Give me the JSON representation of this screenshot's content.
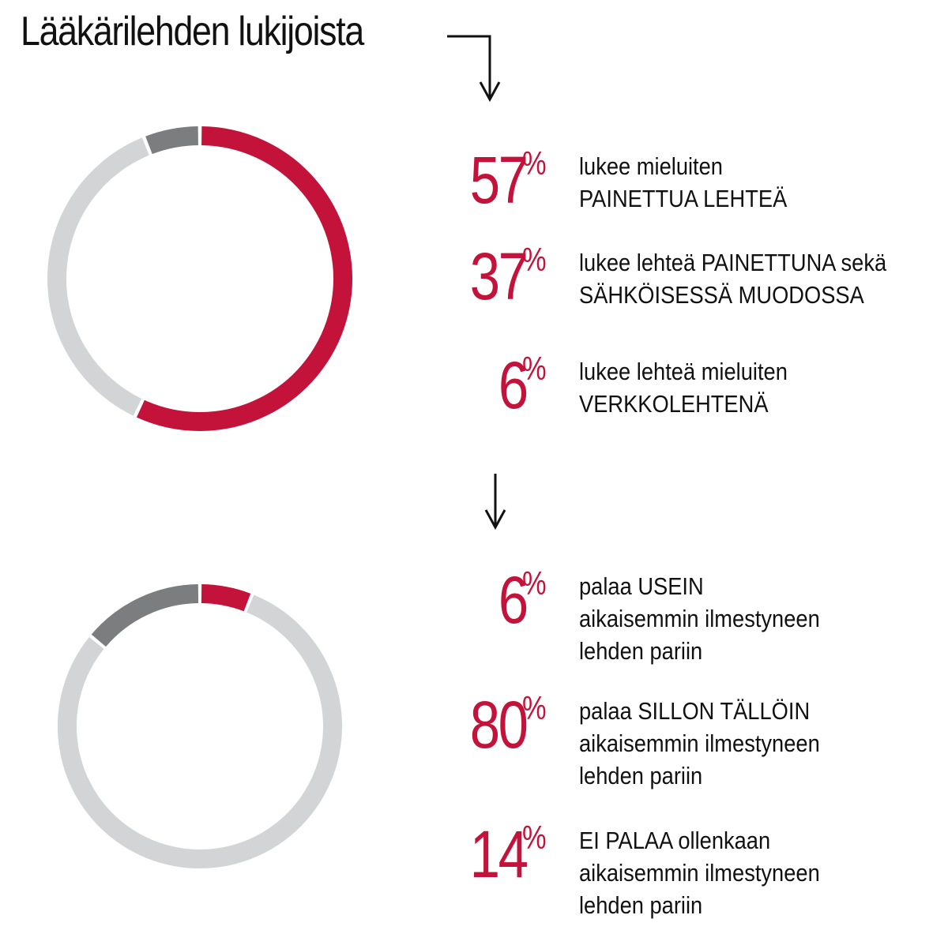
{
  "title": "Lääkärilehden lukijoista",
  "colors": {
    "accent": "#c4133a",
    "dark_gray": "#7c7d7f",
    "light_gray": "#d3d4d6",
    "text": "#111111"
  },
  "chart_data": [
    {
      "type": "pie",
      "style": "donut",
      "slices": [
        {
          "value": 57,
          "label": "57%",
          "color": "#c4133a",
          "lines": [
            "lukee mieluiten",
            "PAINETTUA LEHTEÄ"
          ]
        },
        {
          "value": 37,
          "label": "37%",
          "color": "#d3d4d6",
          "lines": [
            "lukee lehteä PAINETTUNA sekä",
            "SÄHKÖISESSÄ MUODOSSA"
          ]
        },
        {
          "value": 6,
          "label": "6%",
          "color": "#7c7d7f",
          "lines": [
            "lukee lehteä mieluiten",
            "VERKKOLEHTENÄ"
          ]
        }
      ]
    },
    {
      "type": "pie",
      "style": "donut",
      "slices": [
        {
          "value": 6,
          "label": "6%",
          "color": "#c4133a",
          "lines": [
            "palaa USEIN",
            "aikaisemmin ilmestyneen",
            "lehden pariin"
          ]
        },
        {
          "value": 80,
          "label": "80%",
          "color": "#d3d4d6",
          "lines": [
            "palaa SILLON TÄLLÖIN",
            "aikaisemmin ilmestyneen",
            "lehden pariin"
          ]
        },
        {
          "value": 14,
          "label": "14%",
          "color": "#7c7d7f",
          "lines": [
            "EI PALAA ollenkaan",
            "aikaisemmin ilmestyneen",
            "lehden pariin"
          ]
        }
      ]
    }
  ]
}
